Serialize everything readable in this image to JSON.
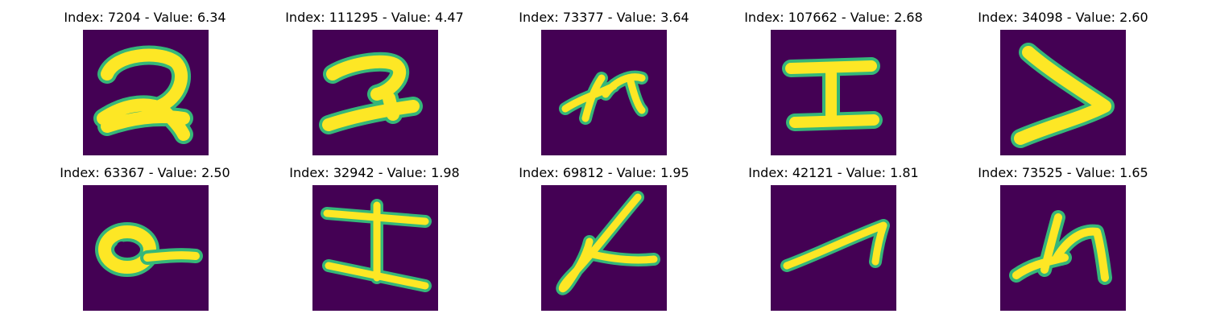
{
  "colors": {
    "background": "#440154",
    "stroke_main": "#fde725",
    "stroke_edge": "#35b779"
  },
  "panels": [
    {
      "title": "Index: 7204 - Value: 6.34",
      "glyph": "hook-2"
    },
    {
      "title": "Index: 111295 - Value: 4.47",
      "glyph": "hook-2"
    },
    {
      "title": "Index: 73377 - Value: 3.64",
      "glyph": "scribble-n"
    },
    {
      "title": "Index: 107662 - Value: 2.68",
      "glyph": "i-beam"
    },
    {
      "title": "Index: 34098 - Value: 2.60",
      "glyph": "greater-than"
    },
    {
      "title": "Index: 63367 - Value: 2.50",
      "glyph": "loop-tail"
    },
    {
      "title": "Index: 32942 - Value: 1.98",
      "glyph": "i-beam"
    },
    {
      "title": "Index: 69812 - Value: 1.95",
      "glyph": "loop-k"
    },
    {
      "title": "Index: 42121 - Value: 1.81",
      "glyph": "check-stroke"
    },
    {
      "title": "Index: 73525 - Value: 1.65",
      "glyph": "scribble-n"
    }
  ]
}
